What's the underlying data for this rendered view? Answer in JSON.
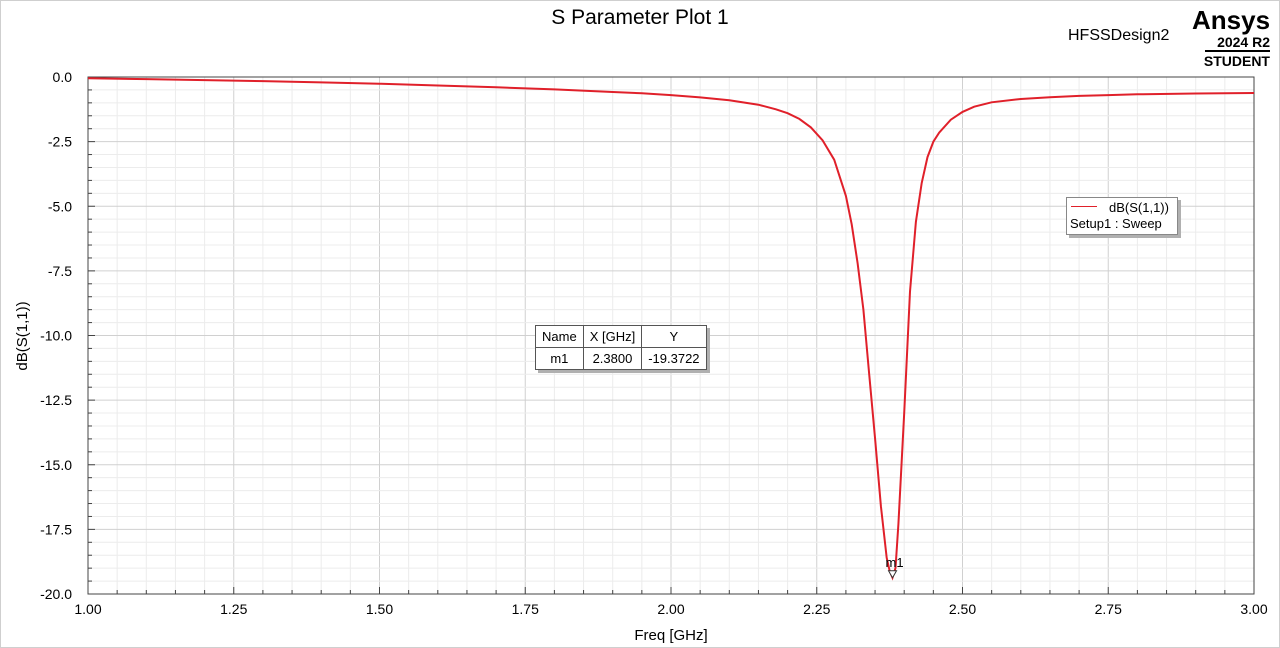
{
  "header": {
    "title": "S Parameter Plot 1",
    "design_name": "HFSSDesign2",
    "brand": "Ansys",
    "version": "2024 R2",
    "edition": "STUDENT"
  },
  "marker_table": {
    "headers": [
      "Name",
      "X [GHz]",
      "Y"
    ],
    "rows": [
      [
        "m1",
        "2.3800",
        "-19.3722"
      ]
    ]
  },
  "legend": {
    "trace": "dB(S(1,1))",
    "setup": "Setup1 : Sweep"
  },
  "chart_data": {
    "type": "line",
    "title": "S Parameter Plot 1",
    "xlabel": "Freq [GHz]",
    "ylabel": "dB(S(1,1))",
    "xlim": [
      1.0,
      3.0
    ],
    "ylim": [
      -20.0,
      0.0
    ],
    "x_ticks": [
      "1.00",
      "1.25",
      "1.50",
      "1.75",
      "2.00",
      "2.25",
      "2.50",
      "2.75",
      "3.00"
    ],
    "y_ticks": [
      "0.0",
      "-2.5",
      "-5.0",
      "-7.5",
      "-10.0",
      "-12.5",
      "-15.0",
      "-17.5",
      "-20.0"
    ],
    "grid": true,
    "legend_position": "top-right",
    "color": "#e0202a",
    "series": [
      {
        "name": "dB(S(1,1))",
        "x": [
          1.0,
          1.1,
          1.2,
          1.3,
          1.4,
          1.5,
          1.6,
          1.7,
          1.8,
          1.9,
          1.95,
          2.0,
          2.05,
          2.1,
          2.15,
          2.18,
          2.2,
          2.22,
          2.24,
          2.26,
          2.28,
          2.3,
          2.31,
          2.32,
          2.33,
          2.34,
          2.35,
          2.36,
          2.37,
          2.375,
          2.38,
          2.385,
          2.39,
          2.4,
          2.41,
          2.42,
          2.43,
          2.44,
          2.45,
          2.46,
          2.48,
          2.5,
          2.52,
          2.55,
          2.6,
          2.65,
          2.7,
          2.75,
          2.8,
          2.9,
          3.0
        ],
        "y": [
          -0.05,
          -0.08,
          -0.12,
          -0.16,
          -0.21,
          -0.26,
          -0.33,
          -0.4,
          -0.48,
          -0.58,
          -0.63,
          -0.7,
          -0.79,
          -0.9,
          -1.07,
          -1.25,
          -1.4,
          -1.62,
          -1.95,
          -2.45,
          -3.2,
          -4.6,
          -5.7,
          -7.2,
          -9.0,
          -11.5,
          -14.0,
          -16.6,
          -18.6,
          -19.1,
          -19.37,
          -19.0,
          -17.3,
          -13.0,
          -8.3,
          -5.6,
          -4.1,
          -3.1,
          -2.5,
          -2.15,
          -1.65,
          -1.35,
          -1.15,
          -0.98,
          -0.85,
          -0.78,
          -0.73,
          -0.7,
          -0.67,
          -0.64,
          -0.62
        ]
      }
    ],
    "markers": [
      {
        "name": "m1",
        "x": 2.38,
        "y": -19.3722
      }
    ]
  }
}
